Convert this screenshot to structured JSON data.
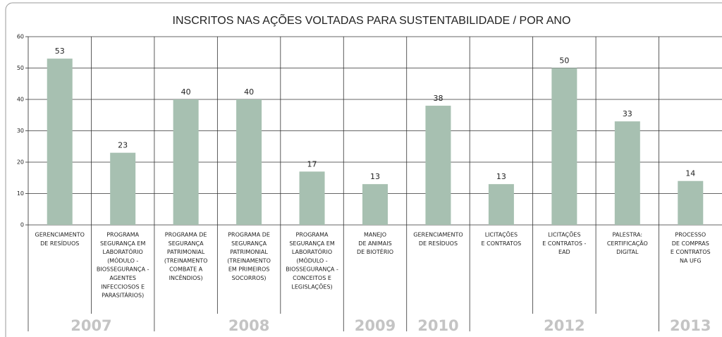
{
  "chart_data": {
    "type": "bar",
    "title": "INSCRITOS NAS AÇÕES VOLTADAS PARA SUSTENTABILIDADE / POR ANO",
    "categories": [
      [
        "GERENCIAMENTO",
        "DE RESÍDUOS"
      ],
      [
        "PROGRAMA",
        "SEGURANÇA EM",
        "LABORATÓRIO",
        "(MÓDULO -",
        "BIOSSEGURANÇA -",
        "AGENTES",
        "INFECCIOSOS E",
        "PARASITÁRIOS)"
      ],
      [
        "PROGRAMA DE",
        "SEGURANÇA",
        "PATRIMONIAL",
        "(TREINAMENTO",
        "COMBATE A",
        "INCÊNDIOS)"
      ],
      [
        "PROGRAMA DE",
        "SEGURANÇA",
        "PATRIMONIAL",
        "(TREINAMENTO",
        "EM PRIMEIROS",
        "SOCORROS)"
      ],
      [
        "PROGRAMA",
        "SEGURANÇA EM",
        "LABORATÓRIO",
        "(MÓDULO -",
        "BIOSSEGURANÇA -",
        "CONCEITOS E",
        "LEGISLAÇÕES)"
      ],
      [
        "MANEJO",
        "DE ANIMAIS",
        "DE BIOTÉRIO"
      ],
      [
        "GERENCIAMENTO",
        "DE RESÍDUOS"
      ],
      [
        "LICITAÇÕES",
        "E CONTRATOS"
      ],
      [
        "LICITAÇÕES",
        "E CONTRATOS -",
        "EAD"
      ],
      [
        "PALESTRA:",
        "CERTIFICAÇÃO",
        "DIGITAL"
      ],
      [
        "PROCESSO",
        "DE COMPRAS",
        "E CONTRATOS",
        "NA UFG"
      ]
    ],
    "years": [
      "2007",
      "2007",
      "2008",
      "2008",
      "2008",
      "2009",
      "2010",
      "2012",
      "2012",
      "2012",
      "2013"
    ],
    "values": [
      53,
      23,
      40,
      40,
      17,
      13,
      38,
      13,
      50,
      33,
      14
    ],
    "color": "#a7c0b1",
    "ylim": [
      0,
      60
    ],
    "yticks": [
      0,
      10,
      20,
      30,
      40,
      50,
      60
    ],
    "grid": true
  }
}
